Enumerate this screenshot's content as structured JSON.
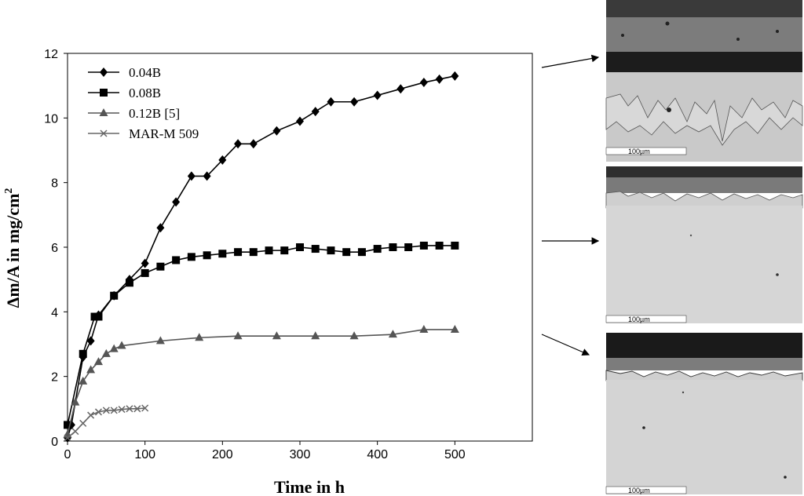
{
  "chart_data": {
    "type": "line",
    "title": "",
    "xlabel": "Time in h",
    "ylabel": "Δm/A in mg/cm",
    "ylabel_superscript": "2",
    "xlim": [
      0,
      600
    ],
    "ylim": [
      0,
      12
    ],
    "xticks": [
      "0",
      "100",
      "200",
      "300",
      "400",
      "500"
    ],
    "yticks": [
      "0",
      "2",
      "4",
      "6",
      "8",
      "10",
      "12"
    ],
    "grid": false,
    "legend_position": "top-left",
    "series": [
      {
        "name": "0.04B",
        "marker": "diamond",
        "color": "#000000",
        "x": [
          0,
          5,
          20,
          30,
          40,
          60,
          80,
          100,
          120,
          140,
          160,
          180,
          200,
          220,
          240,
          270,
          300,
          320,
          340,
          370,
          400,
          430,
          460,
          480,
          500
        ],
        "y": [
          0.1,
          0.5,
          2.6,
          3.1,
          3.9,
          4.5,
          5.0,
          5.5,
          6.6,
          7.4,
          8.2,
          8.2,
          8.7,
          9.2,
          9.2,
          9.6,
          9.9,
          10.2,
          10.5,
          10.5,
          10.7,
          10.9,
          11.1,
          11.2,
          11.3
        ]
      },
      {
        "name": "0.08B",
        "marker": "square",
        "color": "#000000",
        "x": [
          0,
          20,
          35,
          40,
          60,
          80,
          100,
          120,
          140,
          160,
          180,
          200,
          220,
          240,
          260,
          280,
          300,
          320,
          340,
          360,
          380,
          400,
          420,
          440,
          460,
          480,
          500
        ],
        "y": [
          0.5,
          2.7,
          3.85,
          3.85,
          4.5,
          4.9,
          5.2,
          5.4,
          5.6,
          5.7,
          5.75,
          5.8,
          5.85,
          5.85,
          5.9,
          5.9,
          6.0,
          5.95,
          5.9,
          5.85,
          5.85,
          5.95,
          6.0,
          6.0,
          6.05,
          6.05,
          6.05
        ]
      },
      {
        "name": "0.12B [5]",
        "marker": "triangle",
        "color": "#555555",
        "x": [
          0,
          10,
          20,
          30,
          40,
          50,
          60,
          70,
          120,
          170,
          220,
          270,
          320,
          370,
          420,
          460,
          500
        ],
        "y": [
          0.2,
          1.2,
          1.85,
          2.2,
          2.45,
          2.7,
          2.85,
          2.95,
          3.1,
          3.2,
          3.25,
          3.25,
          3.25,
          3.25,
          3.3,
          3.45,
          3.45
        ]
      },
      {
        "name": "MAR-M 509",
        "marker": "x",
        "color": "#666666",
        "x": [
          0,
          10,
          20,
          30,
          40,
          50,
          60,
          70,
          80,
          90,
          100
        ],
        "y": [
          0.1,
          0.3,
          0.55,
          0.8,
          0.9,
          0.95,
          0.95,
          0.98,
          1.0,
          1.0,
          1.02
        ]
      }
    ],
    "micrographs": [
      {
        "scale_bar": "100µm"
      },
      {
        "scale_bar": "100µm"
      },
      {
        "scale_bar": "100µm"
      }
    ]
  }
}
